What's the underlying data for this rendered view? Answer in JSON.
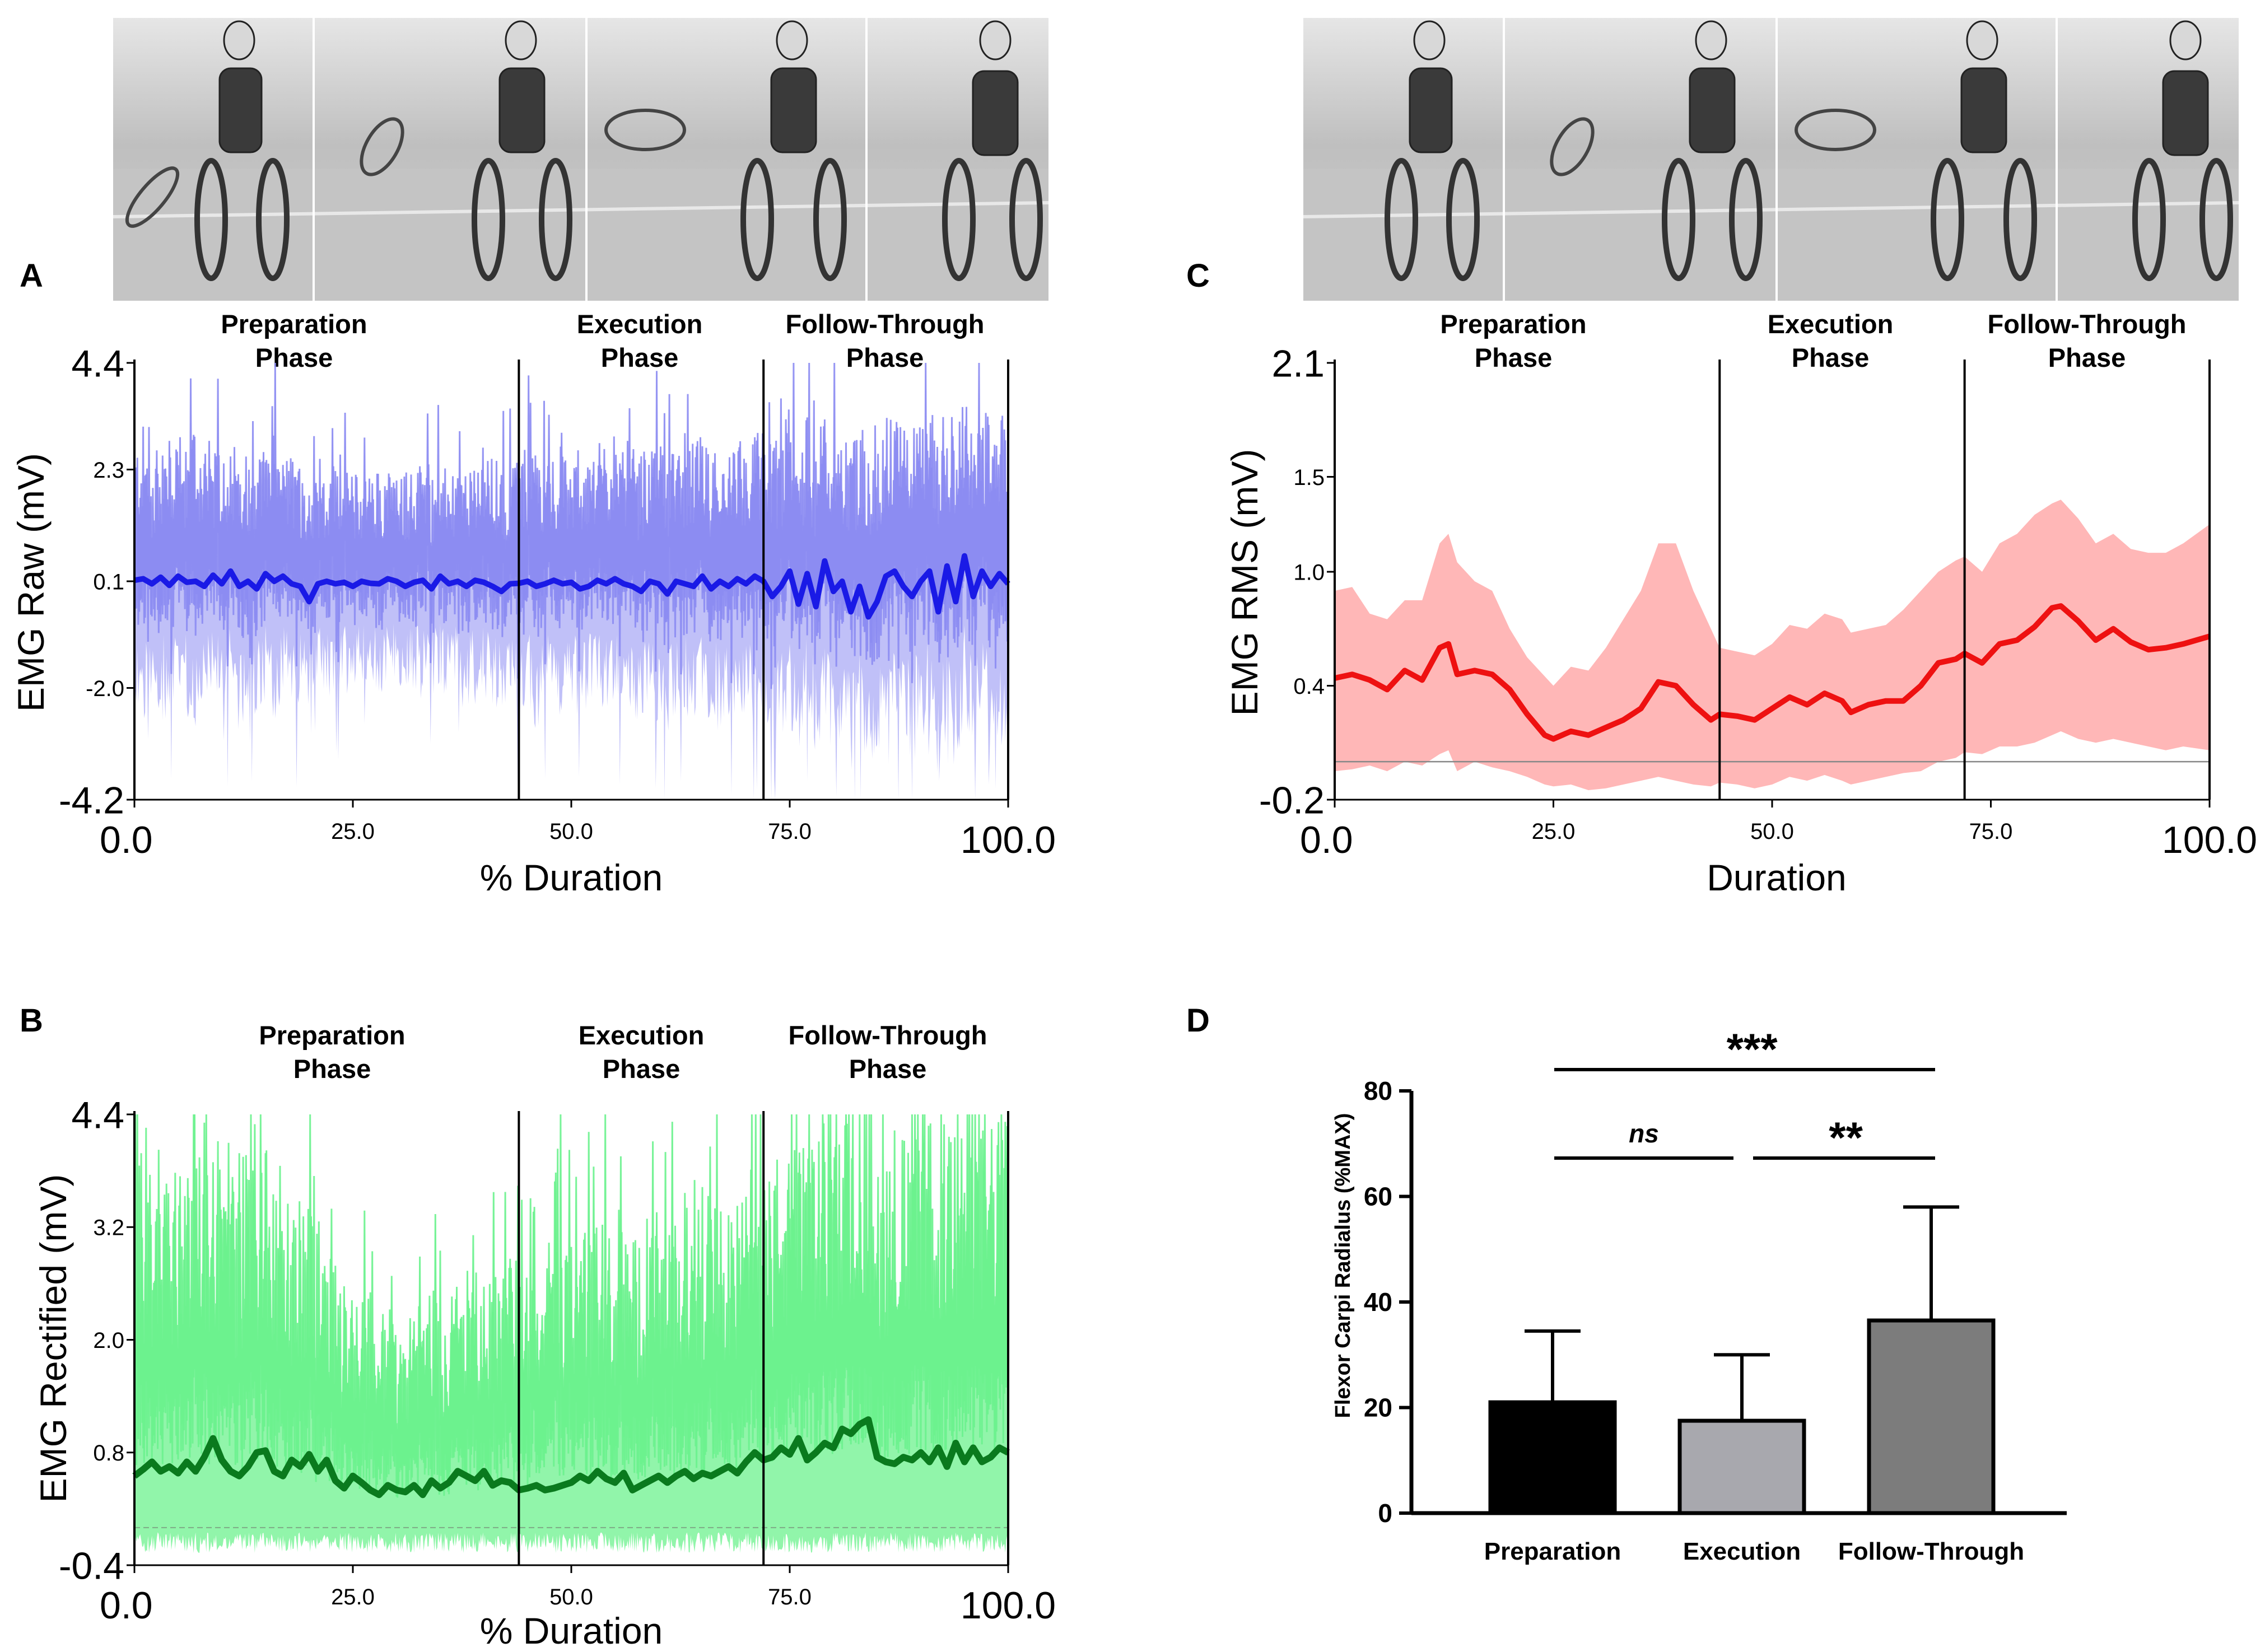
{
  "panels": {
    "A": {
      "label": "A",
      "type": "line",
      "ylabel": "EMG Raw (mV)",
      "xlabel": "% Duration",
      "yticks": [
        "4.4",
        "2.3",
        "0.1",
        "-2.0",
        "-4.2"
      ],
      "ytick_values": [
        4.4,
        2.3,
        0.1,
        -2.0,
        -4.2
      ],
      "ylim": [
        -4.2,
        4.4
      ],
      "xticks": [
        "0.0",
        "25.0",
        "50.0",
        "75.0",
        "100.0"
      ],
      "xlim": [
        0,
        100
      ],
      "phase_boundaries": [
        44,
        72
      ],
      "phases": [
        {
          "line1": "Preparation",
          "line2": "Phase"
        },
        {
          "line1": "Execution",
          "line2": "Phase"
        },
        {
          "line1": "Follow-Through",
          "line2": "Phase"
        }
      ],
      "series_color": "#1a1ae6",
      "band_color": "#8c8cf2",
      "mean": [
        0.12,
        0.15,
        0.05,
        0.18,
        0.02,
        0.2,
        0.08,
        0.1,
        0.0,
        0.22,
        0.05,
        0.3,
        0.0,
        0.1,
        -0.05,
        0.25,
        0.1,
        0.2,
        0.05,
        0.0,
        -0.3,
        0.05,
        0.1,
        0.05,
        0.08,
        0.0,
        0.1,
        0.06,
        0.05,
        0.15,
        0.1,
        0.0,
        0.08,
        0.12,
        -0.05,
        0.2,
        0.05,
        0.1,
        0.0,
        0.12,
        0.08,
        0.0,
        -0.1,
        0.05,
        0.06,
        0.1,
        0.0,
        0.05,
        0.12,
        0.05,
        0.08,
        -0.05,
        0.0,
        0.12,
        0.05,
        0.15,
        0.05,
        0.0,
        -0.1,
        0.1,
        0.05,
        -0.15,
        0.1,
        0.05,
        0.0,
        0.2,
        -0.05,
        0.1,
        0.0,
        0.15,
        0.05,
        0.2,
        0.1,
        -0.2,
        0.0,
        0.3,
        -0.35,
        0.25,
        -0.4,
        0.5,
        -0.1,
        0.1,
        -0.5,
        0.0,
        -0.6,
        -0.3,
        0.2,
        0.3,
        0.0,
        -0.2,
        0.1,
        0.3,
        -0.5,
        0.4,
        -0.3,
        0.6,
        -0.2,
        0.3,
        0.0,
        0.25,
        0.05
      ],
      "spread": [
        1.8,
        2.1,
        1.6,
        1.9,
        2.0,
        1.7,
        1.8,
        2.2,
        1.9,
        1.6,
        2.0,
        1.8,
        2.1,
        1.7,
        1.9,
        1.8,
        2.0,
        1.6,
        1.8,
        1.7,
        1.5,
        1.6,
        1.5,
        1.7,
        1.5,
        1.6,
        1.4,
        1.5,
        1.6,
        1.5,
        1.4,
        1.6,
        1.5,
        1.7,
        1.5,
        1.6,
        1.5,
        1.4,
        1.6,
        1.7,
        1.6,
        1.8,
        1.7,
        1.6,
        1.9,
        1.8,
        2.0,
        1.7,
        1.8,
        1.9,
        1.7,
        1.8,
        1.6,
        1.9,
        2.0,
        1.7,
        1.8,
        1.9,
        1.7,
        1.8,
        2.0,
        1.9,
        1.8,
        1.7,
        2.0,
        1.9,
        1.8,
        2.1,
        1.9,
        2.0,
        1.8,
        2.0,
        2.1,
        2.2,
        2.0,
        2.3,
        2.1,
        2.2,
        2.0,
        2.4,
        2.2,
        2.1,
        2.3,
        2.2,
        2.4,
        2.1,
        2.2,
        2.3,
        2.1,
        2.4,
        2.2,
        2.3,
        2.5,
        2.2,
        2.4,
        2.3,
        2.1,
        2.2,
        2.3,
        2.4,
        2.2
      ]
    },
    "B": {
      "label": "B",
      "type": "line",
      "ylabel": "EMG Rectified (mV)",
      "xlabel": "% Duration",
      "yticks": [
        "4.4",
        "3.2",
        "2.0",
        "0.8",
        "-0.4"
      ],
      "ytick_values": [
        4.4,
        3.2,
        2.0,
        0.8,
        -0.4
      ],
      "ylim": [
        -0.4,
        4.4
      ],
      "xticks": [
        "0.0",
        "25.0",
        "50.0",
        "75.0",
        "100.0"
      ],
      "xlim": [
        0,
        100
      ],
      "phase_boundaries": [
        44,
        72
      ],
      "phases": [
        {
          "line1": "Preparation",
          "line2": "Phase"
        },
        {
          "line1": "Execution",
          "line2": "Phase"
        },
        {
          "line1": "Follow-Through",
          "line2": "Phase"
        }
      ],
      "series_color": "#0a7a1e",
      "band_color": "#6cf28e",
      "mean": [
        0.55,
        0.62,
        0.7,
        0.6,
        0.65,
        0.58,
        0.7,
        0.6,
        0.75,
        0.95,
        0.72,
        0.6,
        0.55,
        0.65,
        0.8,
        0.82,
        0.6,
        0.55,
        0.72,
        0.65,
        0.78,
        0.6,
        0.72,
        0.5,
        0.42,
        0.55,
        0.48,
        0.4,
        0.35,
        0.45,
        0.4,
        0.38,
        0.45,
        0.35,
        0.5,
        0.42,
        0.48,
        0.6,
        0.55,
        0.5,
        0.6,
        0.45,
        0.5,
        0.48,
        0.4,
        0.42,
        0.45,
        0.4,
        0.42,
        0.45,
        0.48,
        0.55,
        0.5,
        0.6,
        0.52,
        0.48,
        0.58,
        0.4,
        0.45,
        0.5,
        0.55,
        0.48,
        0.55,
        0.6,
        0.52,
        0.58,
        0.55,
        0.6,
        0.65,
        0.58,
        0.7,
        0.8,
        0.72,
        0.75,
        0.85,
        0.78,
        0.95,
        0.72,
        0.8,
        0.9,
        0.85,
        1.05,
        1.0,
        1.1,
        1.15,
        0.75,
        0.7,
        0.68,
        0.75,
        0.72,
        0.8,
        0.7,
        0.85,
        0.65,
        0.9,
        0.7,
        0.85,
        0.7,
        0.75,
        0.85,
        0.8
      ],
      "spread": [
        2.6,
        2.8,
        2.5,
        2.9,
        2.7,
        2.6,
        3.0,
        2.8,
        2.7,
        2.5,
        2.9,
        2.6,
        2.8,
        2.7,
        2.5,
        2.6,
        2.4,
        2.3,
        2.2,
        2.4,
        2.1,
        2.0,
        2.2,
        1.9,
        1.8,
        1.7,
        1.6,
        1.8,
        1.5,
        1.6,
        1.4,
        1.5,
        1.7,
        1.6,
        1.8,
        1.5,
        1.6,
        1.7,
        1.5,
        1.8,
        1.6,
        1.9,
        1.7,
        2.0,
        1.9,
        2.1,
        2.0,
        2.2,
        2.1,
        2.3,
        2.2,
        2.0,
        2.4,
        2.1,
        2.3,
        2.0,
        2.2,
        2.1,
        2.4,
        2.2,
        2.3,
        2.1,
        2.2,
        2.4,
        2.3,
        2.5,
        2.4,
        2.2,
        2.5,
        2.3,
        2.4,
        2.5,
        2.6,
        2.4,
        2.7,
        2.5,
        2.6,
        2.8,
        2.7,
        2.9,
        2.6,
        2.8,
        2.7,
        3.0,
        2.8,
        2.7,
        2.9,
        3.1,
        2.8,
        3.0,
        3.2,
        2.9,
        3.1,
        2.8,
        3.0,
        3.2,
        2.9,
        3.1,
        3.0,
        3.2,
        3.0
      ]
    },
    "C": {
      "label": "C",
      "type": "area",
      "ylabel": "EMG RMS (mV)",
      "xlabel": "Duration",
      "yticks": [
        "2.1",
        "1.5",
        "1.0",
        "0.4",
        "-0.2"
      ],
      "ytick_values": [
        2.1,
        1.5,
        1.0,
        0.4,
        -0.2
      ],
      "ylim": [
        -0.2,
        2.1
      ],
      "xticks": [
        "0.0",
        "25.0",
        "50.0",
        "75.0",
        "100.0"
      ],
      "xlim": [
        0,
        100
      ],
      "baseline": 0.0,
      "phase_boundaries": [
        44,
        72
      ],
      "phases": [
        {
          "line1": "Preparation",
          "line2": "Phase"
        },
        {
          "line1": "Execution",
          "line2": "Phase"
        },
        {
          "line1": "Follow-Through",
          "line2": "Phase"
        }
      ],
      "series_color": "#ee1111",
      "band_color": "#ffaaaa",
      "x": [
        0,
        2,
        4,
        6,
        8,
        10,
        12,
        13,
        14,
        16,
        18,
        20,
        22,
        24,
        25,
        27,
        29,
        31,
        33,
        35,
        37,
        39,
        41,
        43,
        44,
        46,
        48,
        50,
        52,
        54,
        56,
        58,
        59,
        61,
        63,
        65,
        67,
        69,
        71,
        72,
        74,
        76,
        78,
        80,
        82,
        83,
        85,
        87,
        89,
        91,
        93,
        95,
        97,
        100
      ],
      "mean": [
        0.44,
        0.46,
        0.43,
        0.38,
        0.48,
        0.43,
        0.6,
        0.62,
        0.46,
        0.48,
        0.46,
        0.38,
        0.25,
        0.14,
        0.12,
        0.16,
        0.14,
        0.18,
        0.22,
        0.28,
        0.42,
        0.4,
        0.3,
        0.22,
        0.25,
        0.24,
        0.22,
        0.28,
        0.34,
        0.3,
        0.36,
        0.32,
        0.26,
        0.3,
        0.32,
        0.32,
        0.4,
        0.52,
        0.54,
        0.57,
        0.52,
        0.62,
        0.64,
        0.71,
        0.81,
        0.82,
        0.74,
        0.64,
        0.7,
        0.63,
        0.59,
        0.6,
        0.62,
        0.66
      ],
      "upper": [
        0.9,
        0.92,
        0.78,
        0.75,
        0.85,
        0.85,
        1.15,
        1.2,
        1.05,
        0.95,
        0.9,
        0.7,
        0.55,
        0.45,
        0.4,
        0.5,
        0.48,
        0.6,
        0.75,
        0.9,
        1.15,
        1.15,
        0.9,
        0.7,
        0.6,
        0.58,
        0.56,
        0.62,
        0.72,
        0.7,
        0.78,
        0.75,
        0.68,
        0.7,
        0.72,
        0.8,
        0.9,
        1.0,
        1.06,
        1.08,
        1.0,
        1.15,
        1.2,
        1.3,
        1.36,
        1.38,
        1.28,
        1.15,
        1.2,
        1.12,
        1.1,
        1.1,
        1.15,
        1.25
      ],
      "lower": [
        -0.05,
        -0.04,
        -0.02,
        -0.05,
        0.0,
        -0.02,
        0.04,
        0.06,
        -0.05,
        0.0,
        -0.03,
        -0.05,
        -0.08,
        -0.12,
        -0.13,
        -0.12,
        -0.15,
        -0.14,
        -0.12,
        -0.1,
        -0.08,
        -0.1,
        -0.12,
        -0.13,
        -0.11,
        -0.12,
        -0.14,
        -0.12,
        -0.08,
        -0.1,
        -0.07,
        -0.1,
        -0.12,
        -0.1,
        -0.08,
        -0.06,
        -0.05,
        0.0,
        0.02,
        0.05,
        0.04,
        0.08,
        0.08,
        0.1,
        0.14,
        0.16,
        0.12,
        0.1,
        0.12,
        0.1,
        0.08,
        0.06,
        0.08,
        0.06
      ]
    },
    "D": {
      "label": "D",
      "type": "bar",
      "ylabel": "Flexor Carpi Radialus (%MAX)",
      "categories": [
        "Preparation",
        "Execution",
        "Follow-Through"
      ],
      "values": [
        21,
        17.5,
        36.5
      ],
      "errors": [
        13.5,
        12.5,
        21.5
      ],
      "bar_colors": [
        "#000000",
        "#a8a8ae",
        "#7c7c7c"
      ],
      "yticks": [
        "0",
        "20",
        "40",
        "60",
        "80"
      ],
      "ytick_values": [
        0,
        20,
        40,
        60,
        80
      ],
      "ylim": [
        0,
        80
      ],
      "significance": [
        {
          "from": 0,
          "to": 2,
          "label": "***",
          "italic": false
        },
        {
          "from": 0,
          "to": 1,
          "label": "ns",
          "italic": true
        },
        {
          "from": 1,
          "to": 2,
          "label": "**",
          "italic": false
        }
      ]
    }
  }
}
